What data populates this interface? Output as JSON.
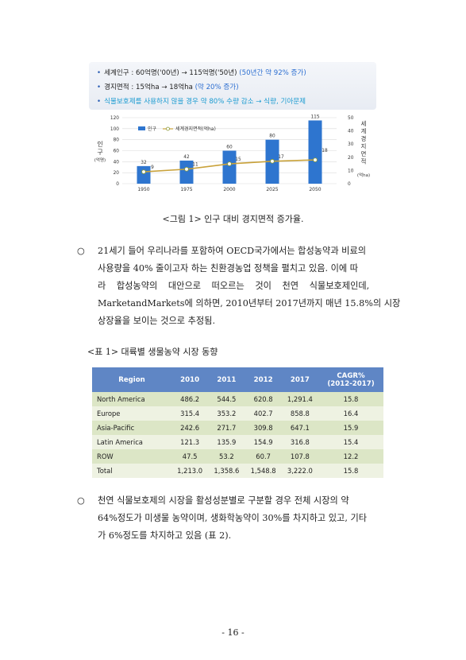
{
  "infobox": {
    "line1": {
      "main": "세계인구 : 60억명('00년) → 115억명('50년)",
      "note": "(50년간 약 92% 증가)"
    },
    "line2": {
      "main": "경지면적 : 15억ha → 18억ha",
      "note": "(약 20% 증가)"
    },
    "line3": {
      "text": "식물보호제를 사용하지 않을 경우 약 80% 수량 감소 → 식량, 기아문제"
    },
    "colors": {
      "note": "#2d6fd1",
      "line3": "#1b9bd1"
    }
  },
  "chart_data": {
    "type": "bar",
    "categories": [
      "1950",
      "1975",
      "2000",
      "2025",
      "2050"
    ],
    "series": [
      {
        "name": "인구",
        "type": "bar",
        "values": [
          32,
          42,
          60,
          80,
          115
        ],
        "color": "#2e75cf"
      },
      {
        "name": "세계경지면적(억ha)",
        "type": "line",
        "values": [
          9,
          11,
          15,
          17,
          18
        ],
        "color": "#c9a23a"
      }
    ],
    "ylabel_left": "인구",
    "ylabel_left_unit": "(억명)",
    "ylabel_right": "세계경지면적",
    "ylabel_right_unit": "(억ha)",
    "ylim_left": [
      0,
      120
    ],
    "ylim_right": [
      0,
      50
    ],
    "yticks_left": [
      "0",
      "20",
      "40",
      "60",
      "80",
      "100",
      "120"
    ],
    "yticks_right": [
      "0",
      "10",
      "20",
      "30",
      "40",
      "50"
    ],
    "legend_position": "top-left",
    "grid": true
  },
  "figure_caption": "<그림 1> 인구 대비 경지면적 증가율.",
  "para1": {
    "bullet": "○",
    "lines": [
      "21세기 들어 우리나라를 포함하여 OECD국가에서는 합성농약과 비료의",
      "사용량을 40% 줄이고자 하는 친환경농업 정책을 펼치고 있음. 이에 따",
      "라 합성농약의 대안으로 떠오르는 것이 천연 식물보호제인데,",
      "MarketandMarkets에 의하면, 2010년부터 2017년까지 매년 15.8%의 시장",
      "상장율을 보이는 것으로 추정됨."
    ]
  },
  "table_title": "<표 1> 대륙별 생물농약 시장 동향",
  "table": {
    "headers": [
      "Region",
      "2010",
      "2011",
      "2012",
      "2017",
      "CAGR%",
      "(2012-2017)"
    ],
    "rows": [
      [
        "North America",
        "486.2",
        "544.5",
        "620.8",
        "1,291.4",
        "15.8"
      ],
      [
        "Europe",
        "315.4",
        "353.2",
        "402.7",
        "858.8",
        "16.4"
      ],
      [
        "Asia-Pacific",
        "242.6",
        "271.7",
        "309.8",
        "647.1",
        "15.9"
      ],
      [
        "Latin America",
        "121.3",
        "135.9",
        "154.9",
        "316.8",
        "15.4"
      ],
      [
        "ROW",
        "47.5",
        "53.2",
        "60.7",
        "107.8",
        "12.2"
      ],
      [
        "Total",
        "1,213.0",
        "1,358.6",
        "1,548.8",
        "3,222.0",
        "15.8"
      ]
    ]
  },
  "para2": {
    "bullet": "○",
    "lines": [
      "천연 식물보호제의 시장을 활성성분별로 구분할 경우 전체 시장의 약",
      "64%정도가 미생물 농약이며, 생화학농약이 30%를 차지하고 있고, 기타",
      "가 6%정도를 차지하고 있음 (표 2)."
    ]
  },
  "page_number": "- 16 -"
}
